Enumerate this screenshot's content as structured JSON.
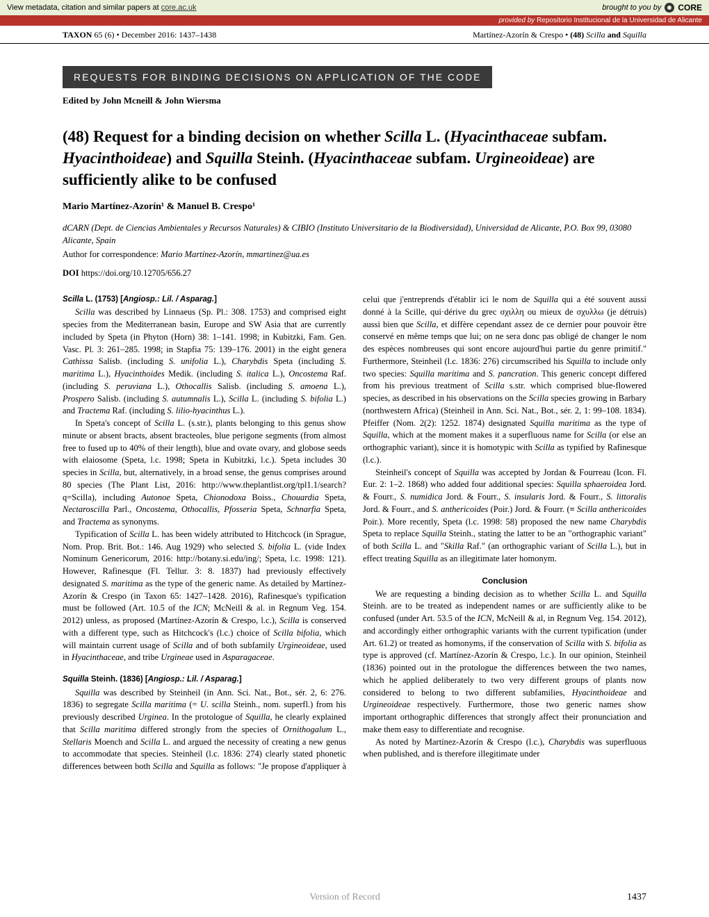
{
  "banner": {
    "left_text": "View metadata, citation and similar papers at ",
    "left_link": "core.ac.uk",
    "right_prefix": "brought to you by",
    "core_label": "CORE"
  },
  "provided": {
    "prefix": "provided by ",
    "source": "Repositorio Institucional de la Universidad de Alicante"
  },
  "header": {
    "journal_bold": "TAXON",
    "journal_rest": " 65 (6) • December 2016: 1437–1438",
    "right": "Martínez-Azorín & Crespo • (48) Scilla and Squilla"
  },
  "section_title": "REQUESTS FOR BINDING DECISIONS ON APPLICATION OF THE CODE",
  "editor": "Edited by John Mcneill & John Wiersma",
  "title_parts": {
    "p1": "(48) Request for a binding decision on whether ",
    "i1": "Scilla",
    "p2": " L. (",
    "i2": "Hyacinthaceae",
    "p3": " subfam. ",
    "i3": "Hyacinthoideae",
    "p4": ") and ",
    "i4": "Squilla",
    "p5": " Steinh. (",
    "i5": "Hyacinthaceae",
    "p6": " subfam. ",
    "i6": "Urgineoideae",
    "p7": ") are sufficiently alike to be confused"
  },
  "authors": "Mario Martínez-Azorín¹ & Manuel B. Crespo¹",
  "affiliation": "dCARN (Dept. de Ciencias Ambientales y Recursos Naturales) & CIBIO (Instituto Universitario de la Biodiversidad), Universidad de Alicante, P.O. Box 99, 03080 Alicante, Spain",
  "correspondence_prefix": "Author for correspondence: ",
  "correspondence_name": "Mario Martínez-Azorín, mmartinez@ua.es",
  "doi_label": "DOI",
  "doi_url": "  https://doi.org/10.12705/656.27",
  "entry1": {
    "name": "Scilla",
    "rest": " L. (1753) [",
    "class_i": "Angiosp.: Lil. / Asparag.",
    "close": "]"
  },
  "entry2": {
    "name": "Squilla",
    "rest": " Steinh. (1836) [",
    "class_i": "Angiosp.: Lil. / Asparag.",
    "close": "]"
  },
  "conclusion_label": "Conclusion",
  "footer": {
    "center": "Version of Record",
    "page": "1437"
  }
}
